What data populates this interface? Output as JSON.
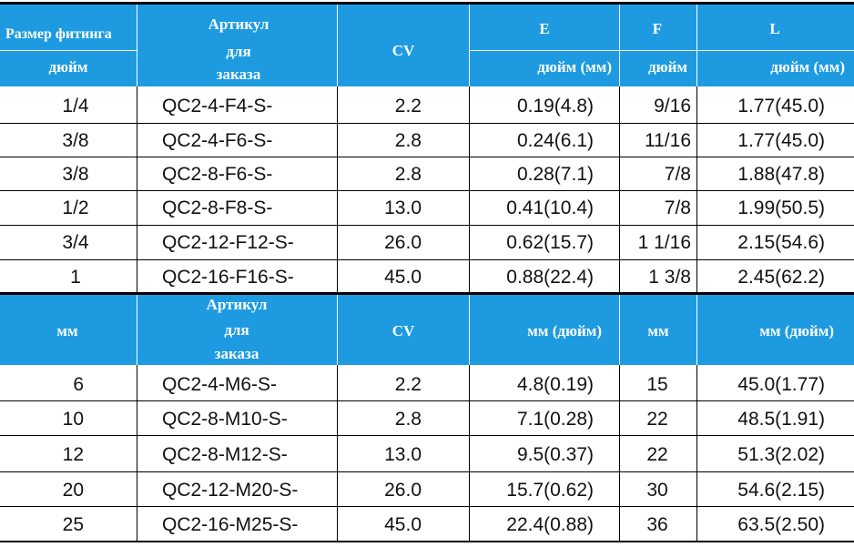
{
  "inch_header": {
    "fitting_size": "Размер фитинга",
    "unit_inch": "дюйм",
    "article_l1": "Артикул",
    "article_l2": "для",
    "article_l3": "заказа",
    "cv": "CV",
    "e": "E",
    "f": "F",
    "l": "L",
    "e_unit": "дюйм (мм)",
    "f_unit": "дюйм",
    "l_unit": "дюйм (мм)"
  },
  "inch_rows": [
    {
      "size": "1/4",
      "article": "QC2-4-F4-S-",
      "cv": "2.2",
      "e": "0.19(4.8)",
      "f": "9/16",
      "l": "1.77(45.0)"
    },
    {
      "size": "3/8",
      "article": "QC2-4-F6-S-",
      "cv": "2.8",
      "e": "0.24(6.1)",
      "f": "11/16",
      "l": "1.77(45.0)"
    },
    {
      "size": "3/8",
      "article": "QC2-8-F6-S-",
      "cv": "2.8",
      "e": "0.28(7.1)",
      "f": "7/8",
      "l": "1.88(47.8)"
    },
    {
      "size": "1/2",
      "article": "QC2-8-F8-S-",
      "cv": "13.0",
      "e": "0.41(10.4)",
      "f": "7/8",
      "l": "1.99(50.5)"
    },
    {
      "size": "3/4",
      "article": "QC2-12-F12-S-",
      "cv": "26.0",
      "e": "0.62(15.7)",
      "f": "1 1/16",
      "l": "2.15(54.6)"
    },
    {
      "size": "1",
      "article": "QC2-16-F16-S-",
      "cv": "45.0",
      "e": "0.88(22.4)",
      "f": "1 3/8",
      "l": "2.45(62.2)"
    }
  ],
  "mm_header": {
    "unit_mm": "мм",
    "article_l1": "Артикул",
    "article_l2": "для",
    "article_l3": "заказа",
    "cv": "CV",
    "e_unit": "мм (дюйм)",
    "f_unit": "мм",
    "l_unit": "мм (дюйм)"
  },
  "mm_rows": [
    {
      "size": "6",
      "article": "QC2-4-M6-S-",
      "cv": "2.2",
      "e": "4.8(0.19)",
      "f": "15",
      "l": "45.0(1.77)"
    },
    {
      "size": "10",
      "article": "QC2-8-M10-S-",
      "cv": "2.8",
      "e": "7.1(0.28)",
      "f": "22",
      "l": "48.5(1.91)"
    },
    {
      "size": "12",
      "article": "QC2-8-M12-S-",
      "cv": "13.0",
      "e": "9.5(0.37)",
      "f": "22",
      "l": "51.3(2.02)"
    },
    {
      "size": "20",
      "article": "QC2-12-M20-S-",
      "cv": "26.0",
      "e": "15.7(0.62)",
      "f": "30",
      "l": "54.6(2.15)"
    },
    {
      "size": "25",
      "article": "QC2-16-M25-S-",
      "cv": "45.0",
      "e": "22.4(0.88)",
      "f": "36",
      "l": "63.5(2.50)"
    }
  ],
  "colors": {
    "header_blue": "#1e9be0",
    "header_text": "#ffffff",
    "rule": "#000000"
  }
}
